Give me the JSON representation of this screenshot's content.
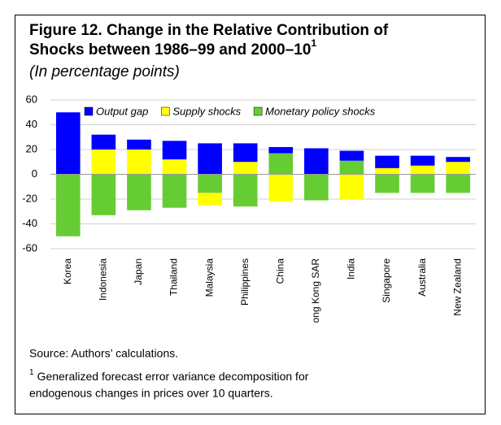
{
  "chart_data": {
    "type": "stacked-bar",
    "title": [
      "Figure 12. Change in the Relative Contribution of",
      "Shocks between 1986–99 and 2000–10"
    ],
    "title_note": "1",
    "subtitle": "(In percentage points)",
    "categories": [
      "Korea",
      "Indonesia",
      "Japan",
      "Thailand",
      "Malaysia",
      "Philippines",
      "China",
      "ong Kong SAR",
      "India",
      "Singapore",
      "Australia",
      "New Zealand"
    ],
    "series": [
      {
        "name": "Monetary policy shocks",
        "color": "#66cc33",
        "values": [
          -50,
          -33,
          -29,
          -27,
          -15,
          -26,
          17,
          -21,
          11,
          -15,
          -15,
          -15
        ]
      },
      {
        "name": "Supply shocks",
        "color": "#ffff00",
        "values": [
          0,
          20,
          20,
          12,
          -10,
          10,
          -22,
          0,
          -20,
          5,
          7,
          10
        ]
      },
      {
        "name": "Output gap",
        "color": "#0000ff",
        "values": [
          50,
          12,
          8,
          15,
          25,
          15,
          5,
          21,
          8,
          10,
          8,
          4
        ]
      }
    ],
    "legend_order": [
      2,
      1,
      0
    ],
    "ylim": [
      -60,
      60
    ],
    "yticks": [
      -60,
      -40,
      -20,
      0,
      20,
      40,
      60
    ],
    "grid": true,
    "source": "Source: Authors’ calculations.",
    "footnote_marker": "1",
    "footnote": [
      "Generalized forecast error variance decomposition for",
      "endogenous changes in prices over 10 quarters."
    ]
  }
}
